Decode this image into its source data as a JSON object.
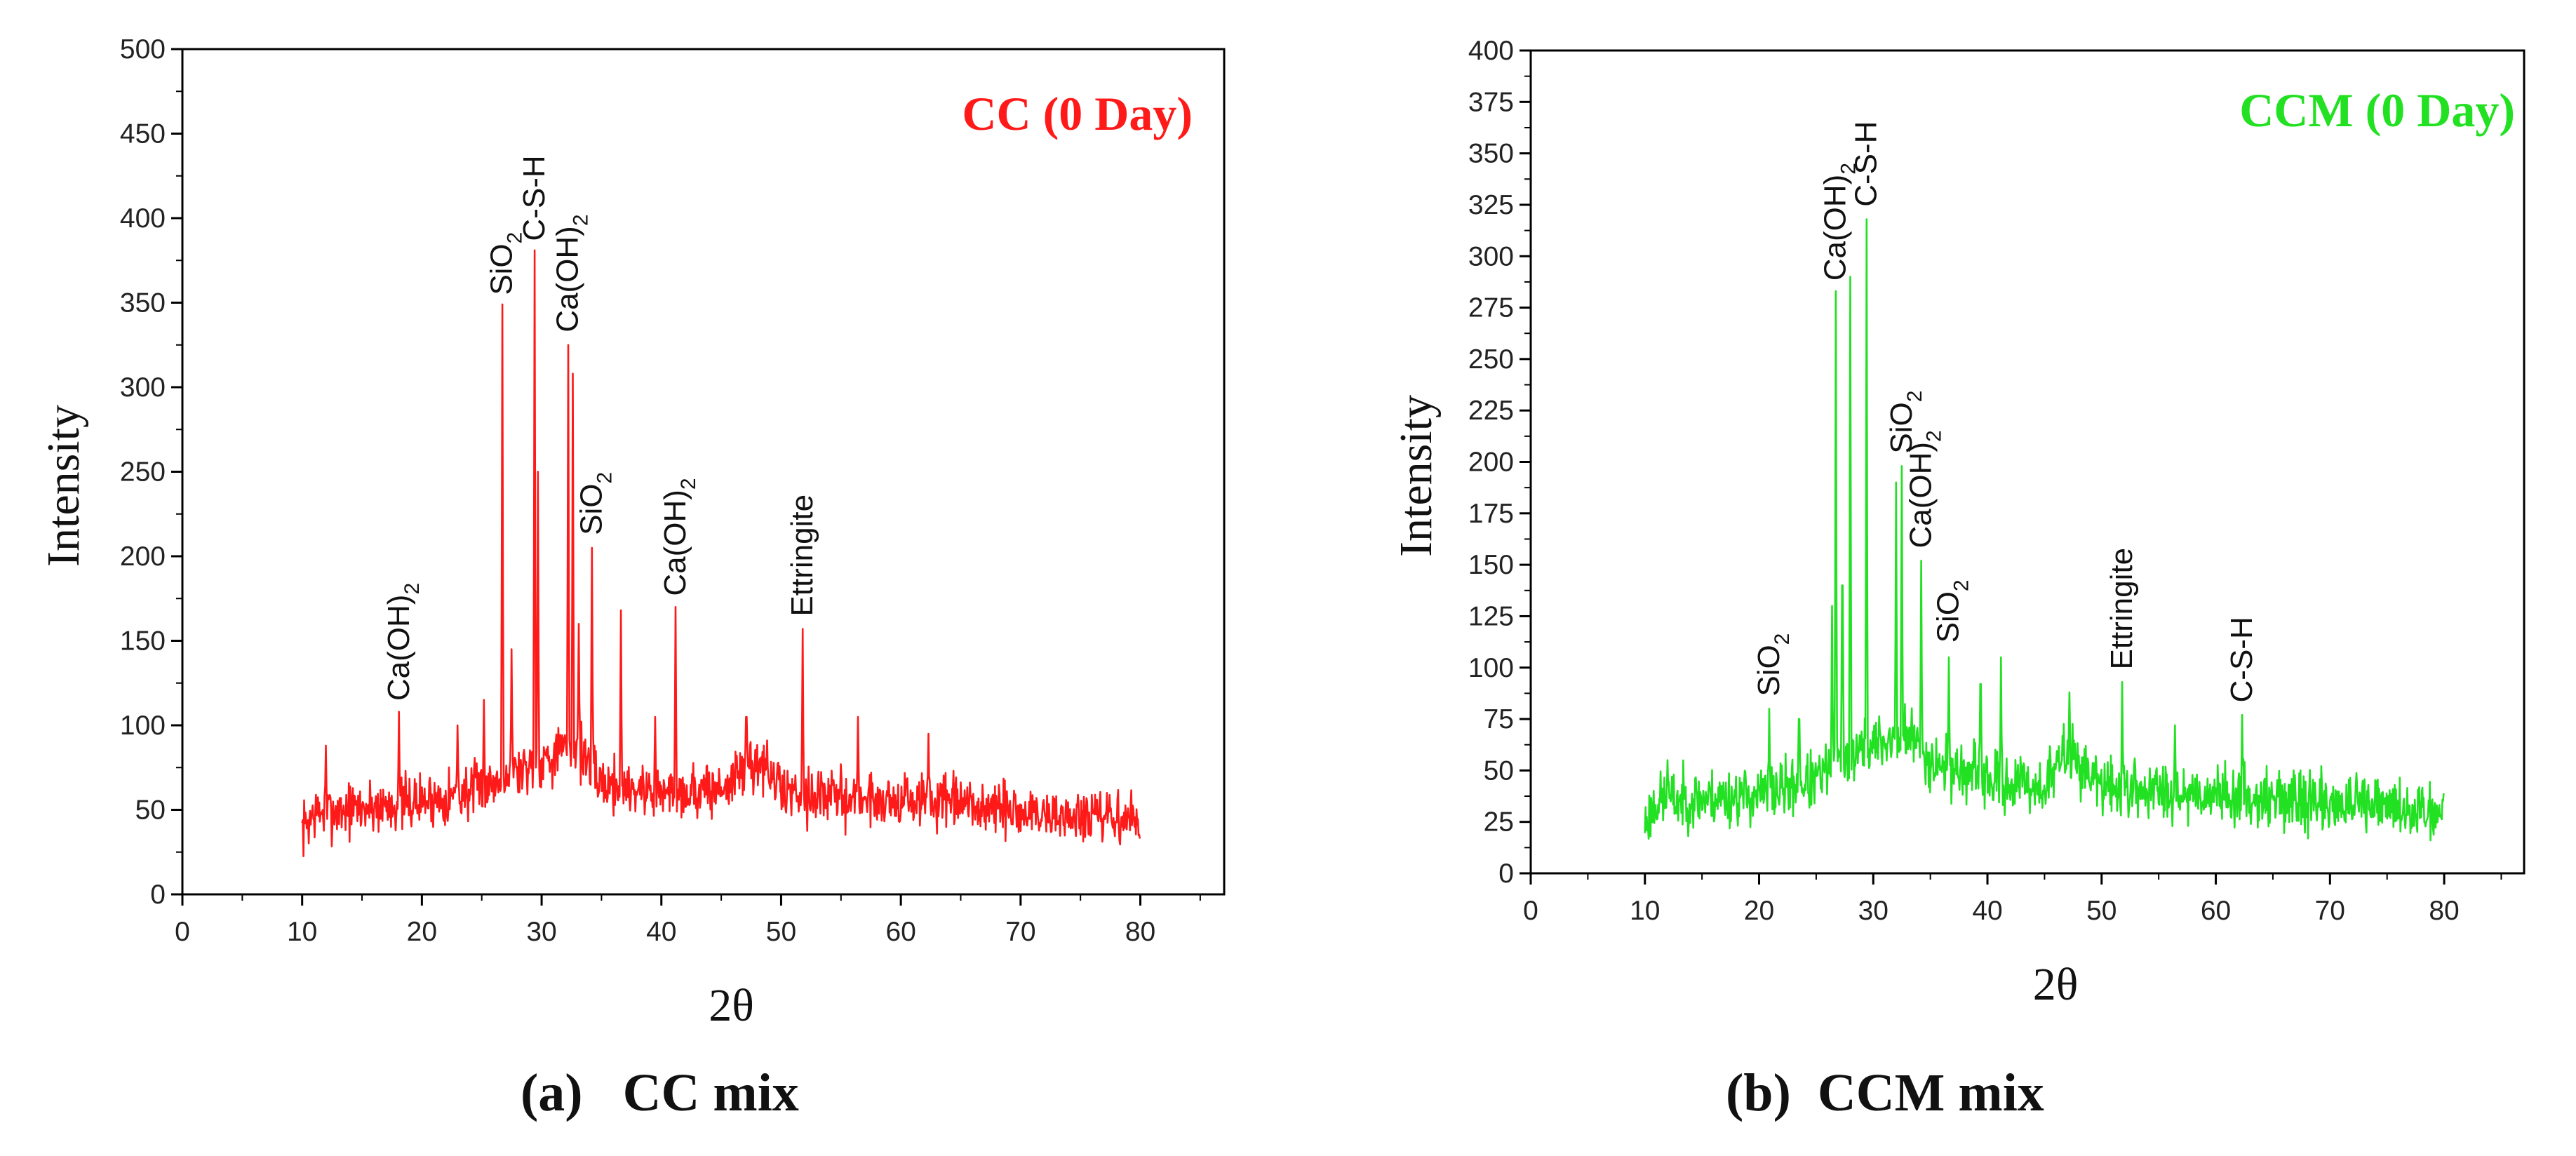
{
  "chart_data": [
    {
      "type": "line",
      "panel_label": "CC (0 Day)",
      "title_color": "#ff1a1a",
      "series_color": "#ff1a1a",
      "xlabel": "2θ",
      "ylabel": "Intensity",
      "xlim": [
        0,
        87
      ],
      "ylim": [
        0,
        500
      ],
      "xticks": [
        0,
        10,
        20,
        30,
        40,
        50,
        60,
        70,
        80
      ],
      "yticks": [
        0,
        50,
        100,
        150,
        200,
        250,
        300,
        350,
        400,
        450,
        500
      ],
      "x_range": [
        10,
        80
      ],
      "baseline": [
        [
          10,
          38
        ],
        [
          11,
          48
        ],
        [
          20,
          55
        ],
        [
          25,
          62
        ],
        [
          27,
          70
        ],
        [
          30,
          80
        ],
        [
          33,
          88
        ],
        [
          35,
          66
        ],
        [
          40,
          60
        ],
        [
          45,
          62
        ],
        [
          48,
          80
        ],
        [
          50,
          62
        ],
        [
          55,
          57
        ],
        [
          62,
          55
        ],
        [
          68,
          50
        ],
        [
          75,
          45
        ],
        [
          80,
          44
        ]
      ],
      "noise": 13,
      "seed": 7,
      "peaks": [
        {
          "x": 12,
          "y": 88
        },
        {
          "x": 18.1,
          "y": 108
        },
        {
          "x": 23,
          "y": 100
        },
        {
          "x": 25.2,
          "y": 115
        },
        {
          "x": 26.7,
          "y": 349
        },
        {
          "x": 27.5,
          "y": 145
        },
        {
          "x": 29.4,
          "y": 381
        },
        {
          "x": 29.7,
          "y": 250
        },
        {
          "x": 32.2,
          "y": 325
        },
        {
          "x": 32.6,
          "y": 308
        },
        {
          "x": 33.1,
          "y": 160
        },
        {
          "x": 34.2,
          "y": 205
        },
        {
          "x": 36.6,
          "y": 168
        },
        {
          "x": 39.5,
          "y": 105
        },
        {
          "x": 41.2,
          "y": 170
        },
        {
          "x": 47.1,
          "y": 105
        },
        {
          "x": 51.8,
          "y": 157
        },
        {
          "x": 56.4,
          "y": 105
        },
        {
          "x": 62.3,
          "y": 95
        }
      ],
      "annotations": [
        {
          "text": "Ca(OH)",
          "sub": "2",
          "x": 18.1,
          "y": 112
        },
        {
          "text": "SiO",
          "sub": "2",
          "x": 26.7,
          "y": 352
        },
        {
          "text": "C-S-H",
          "sub": "",
          "x": 29.4,
          "y": 384
        },
        {
          "text": "Ca(OH)",
          "sub": "2",
          "x": 32.2,
          "y": 330
        },
        {
          "text": "SiO",
          "sub": "2",
          "x": 34.2,
          "y": 210
        },
        {
          "text": "Ca(OH)",
          "sub": "2",
          "x": 41.2,
          "y": 174
        },
        {
          "text": "Ettringite",
          "sub": "",
          "x": 51.8,
          "y": 162
        }
      ]
    },
    {
      "type": "line",
      "panel_label": "CCM (0 Day)",
      "title_color": "#22e022",
      "series_color": "#22e022",
      "xlabel": "2θ",
      "ylabel": "Intensity",
      "xlim": [
        0,
        87
      ],
      "ylim": [
        0,
        400
      ],
      "xticks": [
        0,
        10,
        20,
        30,
        40,
        50,
        60,
        70,
        80
      ],
      "yticks": [
        0,
        25,
        50,
        75,
        100,
        125,
        150,
        175,
        200,
        225,
        250,
        275,
        300,
        325,
        350,
        375,
        400
      ],
      "x_range": [
        10,
        80
      ],
      "baseline": [
        [
          10,
          24
        ],
        [
          11,
          35
        ],
        [
          20,
          38
        ],
        [
          25,
          45
        ],
        [
          27,
          55
        ],
        [
          30,
          62
        ],
        [
          33,
          68
        ],
        [
          35,
          55
        ],
        [
          40,
          45
        ],
        [
          45,
          42
        ],
        [
          47,
          60
        ],
        [
          50,
          42
        ],
        [
          55,
          40
        ],
        [
          62,
          38
        ],
        [
          68,
          35
        ],
        [
          75,
          32
        ],
        [
          80,
          30
        ]
      ],
      "noise": 11,
      "seed": 23,
      "peaks": [
        {
          "x": 12,
          "y": 55
        },
        {
          "x": 20.9,
          "y": 80
        },
        {
          "x": 23.5,
          "y": 75
        },
        {
          "x": 26.4,
          "y": 130
        },
        {
          "x": 26.7,
          "y": 283
        },
        {
          "x": 27.3,
          "y": 140
        },
        {
          "x": 28.0,
          "y": 290
        },
        {
          "x": 29.4,
          "y": 318
        },
        {
          "x": 32.0,
          "y": 190
        },
        {
          "x": 32.5,
          "y": 198
        },
        {
          "x": 34.2,
          "y": 152
        },
        {
          "x": 36.6,
          "y": 105
        },
        {
          "x": 39.4,
          "y": 92
        },
        {
          "x": 41.2,
          "y": 105
        },
        {
          "x": 47.2,
          "y": 88
        },
        {
          "x": 51.8,
          "y": 93
        },
        {
          "x": 56.4,
          "y": 72
        },
        {
          "x": 62.3,
          "y": 77
        }
      ],
      "annotations": [
        {
          "text": "SiO",
          "sub": "2",
          "x": 20.9,
          "y": 84
        },
        {
          "text": "Ca(OH)",
          "sub": "2",
          "x": 26.7,
          "y": 286
        },
        {
          "text": "C-S-H",
          "sub": "",
          "x": 29.4,
          "y": 322
        },
        {
          "text": "SiO",
          "sub": "2",
          "x": 32.5,
          "y": 202
        },
        {
          "text": "Ca(OH)",
          "sub": "2",
          "x": 34.2,
          "y": 156
        },
        {
          "text": "SiO",
          "sub": "2",
          "x": 36.6,
          "y": 110
        },
        {
          "text": "Ettringite",
          "sub": "",
          "x": 51.8,
          "y": 97
        },
        {
          "text": "C-S-H",
          "sub": "",
          "x": 62.3,
          "y": 81
        }
      ]
    }
  ],
  "captions": {
    "left": "(a)   CC mix",
    "right": "(b)  CCM mix"
  }
}
